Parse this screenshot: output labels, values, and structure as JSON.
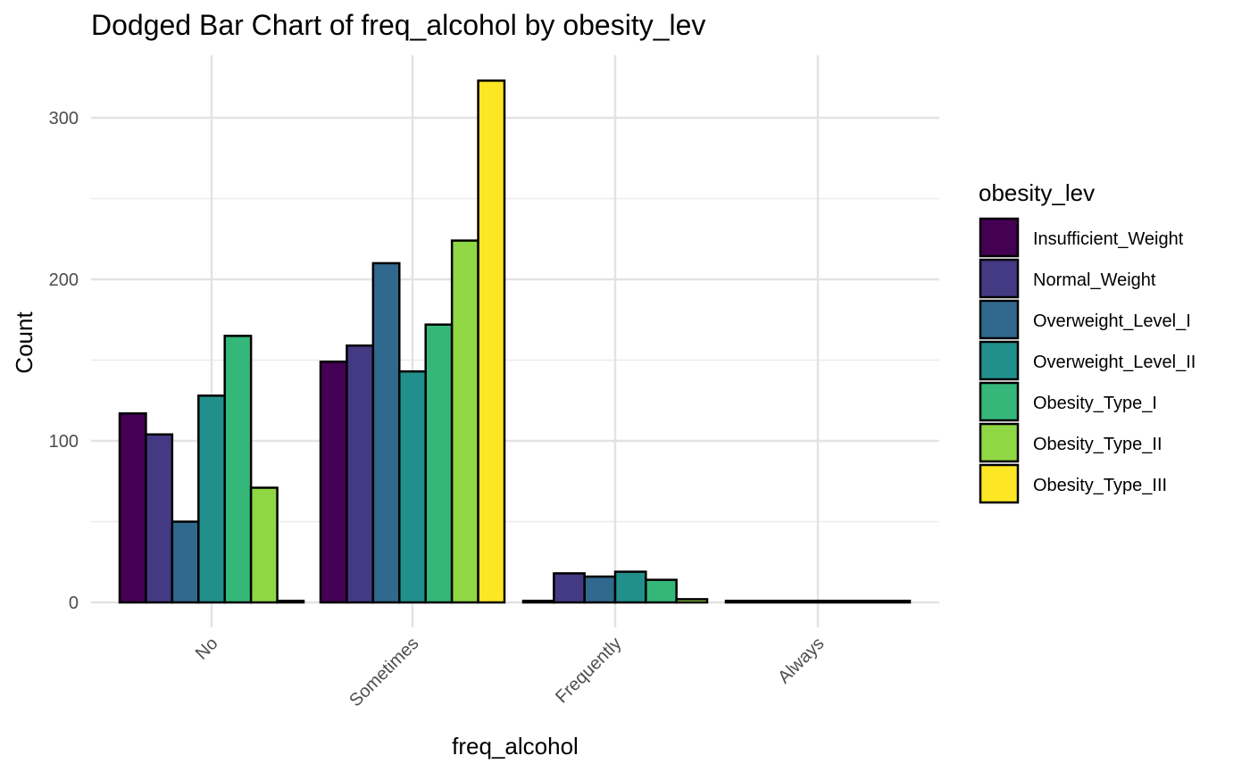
{
  "chart_data": {
    "type": "bar",
    "title": "Dodged Bar Chart of freq_alcohol by obesity_lev",
    "xlabel": "freq_alcohol",
    "ylabel": "Count",
    "categories": [
      "No",
      "Sometimes",
      "Frequently",
      "Always"
    ],
    "y_ticks": [
      0,
      100,
      200,
      300
    ],
    "ylim": [
      -15,
      340
    ],
    "grid": true,
    "legend": {
      "title": "obesity_lev",
      "position": "right"
    },
    "series": [
      {
        "name": "Insufficient_Weight",
        "color": "#440154",
        "values": [
          117,
          149,
          1,
          null
        ]
      },
      {
        "name": "Normal_Weight",
        "color": "#443A83",
        "values": [
          104,
          159,
          18,
          null
        ]
      },
      {
        "name": "Overweight_Level_I",
        "color": "#31688E",
        "values": [
          50,
          210,
          16,
          null
        ]
      },
      {
        "name": "Overweight_Level_II",
        "color": "#21908C",
        "values": [
          128,
          143,
          19,
          null
        ]
      },
      {
        "name": "Obesity_Type_I",
        "color": "#35B779",
        "values": [
          165,
          172,
          14,
          null
        ]
      },
      {
        "name": "Obesity_Type_II",
        "color": "#8FD744",
        "values": [
          71,
          224,
          2,
          null
        ]
      },
      {
        "name": "Obesity_Type_III",
        "color": "#FDE725",
        "values": [
          1,
          323,
          null,
          null
        ]
      }
    ],
    "always_total": 1
  }
}
